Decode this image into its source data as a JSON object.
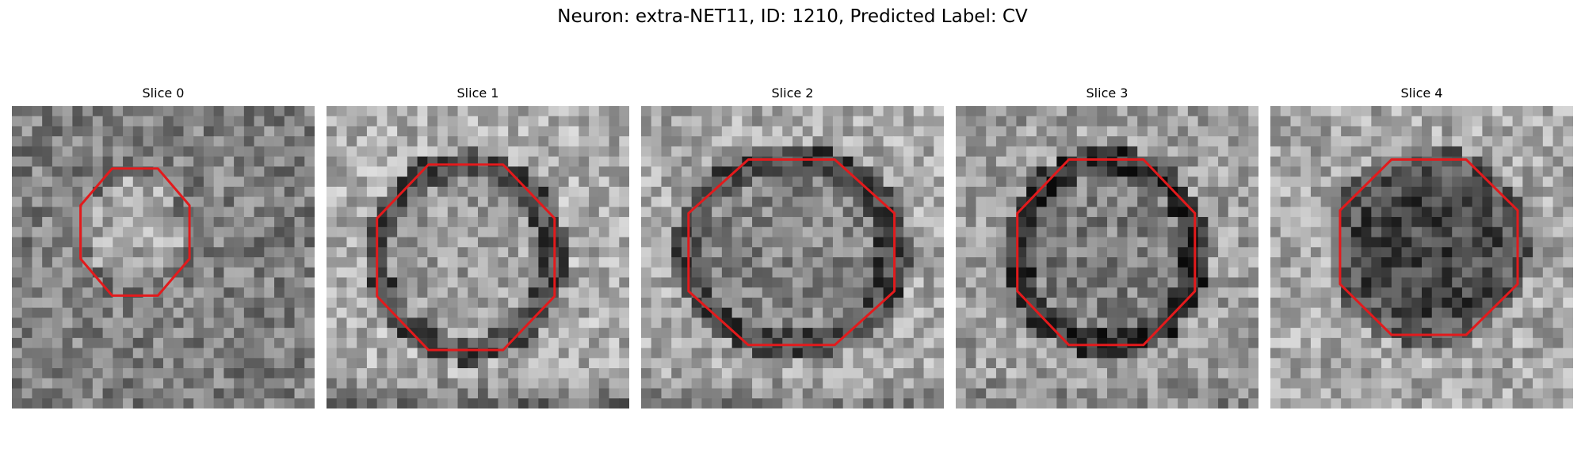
{
  "figure": {
    "title": "Neuron: extra-NET11, ID: 1210, Predicted Label: CV"
  },
  "panels": [
    {
      "title": "Slice 0",
      "seed": 11,
      "contour_color": "#e31a1c"
    },
    {
      "title": "Slice 1",
      "seed": 23,
      "contour_color": "#e31a1c"
    },
    {
      "title": "Slice 2",
      "seed": 37,
      "contour_color": "#e31a1c"
    },
    {
      "title": "Slice 3",
      "seed": 53,
      "contour_color": "#e31a1c"
    },
    {
      "title": "Slice 4",
      "seed": 71,
      "contour_color": "#e31a1c"
    }
  ],
  "colors": {
    "background": "#ffffff",
    "contour": "#e31a1c"
  }
}
